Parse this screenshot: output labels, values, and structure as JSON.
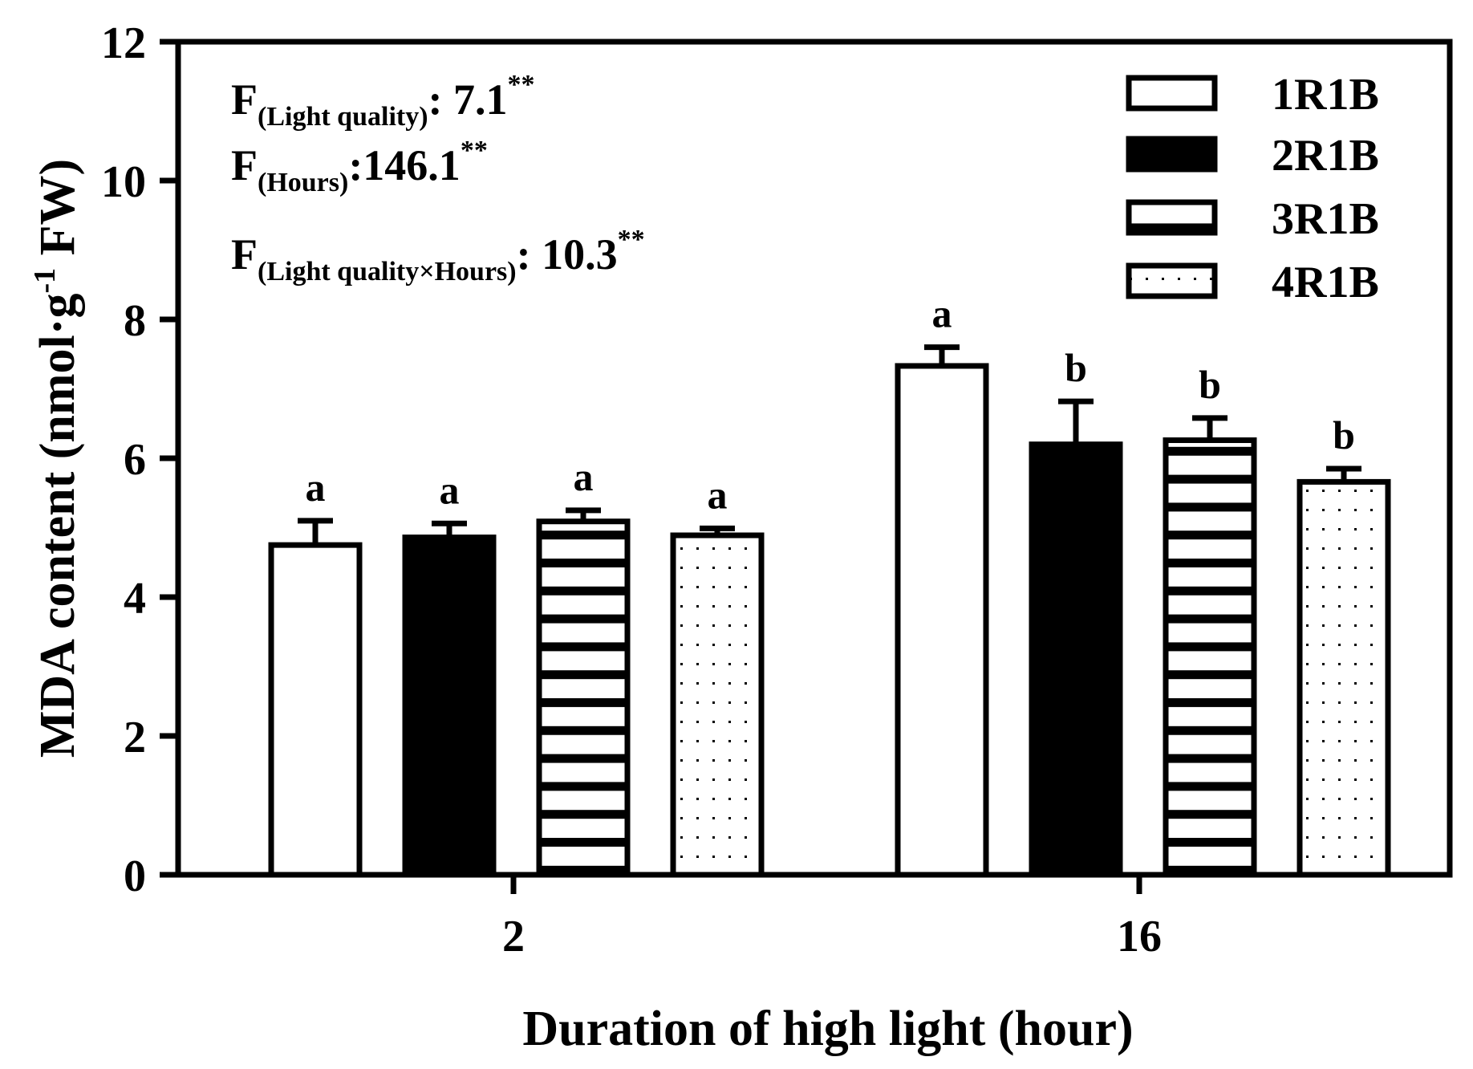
{
  "chart_data": {
    "type": "bar",
    "xlabel": "Duration of high light (hour)",
    "ylabel_main": "MDA content (nmol·g",
    "ylabel_sup": "-1",
    "ylabel_end": " FW)",
    "ylim": [
      0,
      12
    ],
    "y_ticks": [
      "0",
      "2",
      "4",
      "6",
      "8",
      "10",
      "12"
    ],
    "categories": [
      "2",
      "16"
    ],
    "series": [
      {
        "name": "1R1B",
        "pattern": "blank",
        "values": [
          4.75,
          7.33
        ],
        "errors": [
          0.35,
          0.27
        ],
        "letters": [
          "a",
          "a"
        ]
      },
      {
        "name": "2R1B",
        "pattern": "solid",
        "values": [
          4.86,
          6.2
        ],
        "errors": [
          0.2,
          0.62
        ],
        "letters": [
          "a",
          "b"
        ]
      },
      {
        "name": "3R1B",
        "pattern": "stripes",
        "values": [
          5.09,
          6.26
        ],
        "errors": [
          0.16,
          0.32
        ],
        "letters": [
          "a",
          "b"
        ]
      },
      {
        "name": "4R1B",
        "pattern": "dots",
        "values": [
          4.89,
          5.66
        ],
        "errors": [
          0.1,
          0.19
        ],
        "letters": [
          "a",
          "b"
        ]
      }
    ],
    "annotations": [
      {
        "prefix": "F",
        "sub": "(Light quality)",
        "value": ": 7.1",
        "sup": "**"
      },
      {
        "prefix": "F",
        "sub": "(Hours)",
        "value": ":146.1",
        "sup": "**"
      },
      {
        "prefix": "F",
        "sub": "(Light quality×Hours)",
        "value": ": 10.3",
        "sup": "**"
      }
    ],
    "legend_position": "top-right",
    "grid": false
  }
}
